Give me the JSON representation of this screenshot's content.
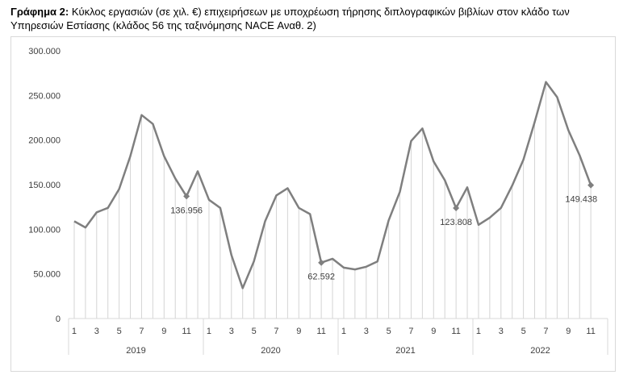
{
  "caption": {
    "prefix": "Γράφημα 2:",
    "text": "Κύκλος εργασιών (σε χιλ. €) επιχειρήσεων με υποχρέωση τήρησης διπλογραφικών βιβλίων στον κλάδο των Υπηρεσιών Εστίασης (κλάδος 56 της ταξινόμησης NACE Αναθ. 2)"
  },
  "chart_data": {
    "type": "line",
    "title": "",
    "xlabel": "",
    "ylabel": "",
    "ylim": [
      0,
      300000
    ],
    "yticks": [
      "0",
      "50.000",
      "100.000",
      "150.000",
      "200.000",
      "250.000",
      "300.000"
    ],
    "grid": "vertical drop lines per point",
    "years": [
      "2019",
      "2020",
      "2021",
      "2022"
    ],
    "month_tick_labels": [
      "1",
      "3",
      "5",
      "7",
      "9",
      "11"
    ],
    "line_color": "#7f7f7f",
    "series": [
      {
        "values": [
          109000,
          102000,
          119000,
          124000,
          145000,
          182000,
          228000,
          218000,
          182000,
          157000,
          136956,
          165000,
          133000,
          124000,
          71000,
          34000,
          64000,
          109000,
          138000,
          146000,
          124000,
          117000,
          62592,
          67000,
          57000,
          55000,
          58000,
          64000,
          110000,
          142000,
          199000,
          213000,
          176000,
          155000,
          123808,
          147000,
          105000,
          113000,
          124000,
          149000,
          178000,
          220000,
          265000,
          248000,
          211000,
          183000,
          149438
        ]
      }
    ],
    "data_labels": [
      {
        "index": 10,
        "text": "136.956"
      },
      {
        "index": 22,
        "text": "62.592"
      },
      {
        "index": 34,
        "text": "123.808"
      },
      {
        "index": 46,
        "text": "149.438"
      }
    ]
  }
}
